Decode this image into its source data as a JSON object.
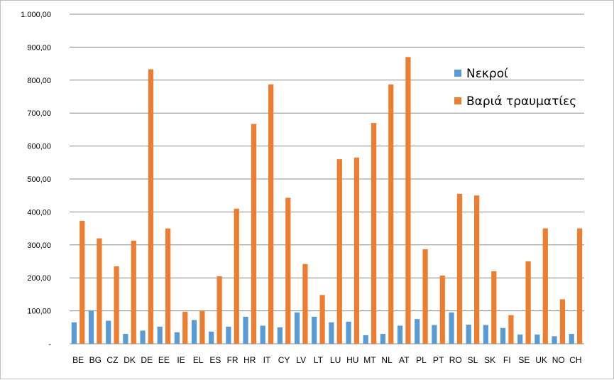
{
  "chart_data": {
    "type": "bar",
    "title": "",
    "xlabel": "",
    "ylabel": "",
    "ylim": [
      0,
      1000
    ],
    "y_ticks": [
      "-",
      "100,00",
      "200,00",
      "300,00",
      "400,00",
      "500,00",
      "600,00",
      "700,00",
      "800,00",
      "900,00",
      "1.000,00"
    ],
    "grid": true,
    "legend_position": "right",
    "categories": [
      "BE",
      "BG",
      "CZ",
      "DK",
      "DE",
      "EE",
      "IE",
      "EL",
      "ES",
      "FR",
      "HR",
      "IT",
      "CY",
      "LV",
      "LT",
      "LU",
      "HU",
      "MT",
      "NL",
      "AT",
      "PL",
      "PT",
      "RO",
      "SL",
      "SK",
      "FI",
      "SE",
      "UK",
      "NO",
      "CH"
    ],
    "series": [
      {
        "name": "Νεκροί",
        "color": "#5b9bd5",
        "values": [
          65,
          100,
          70,
          30,
          40,
          52,
          35,
          72,
          37,
          52,
          82,
          55,
          50,
          95,
          82,
          65,
          67,
          26,
          30,
          55,
          75,
          57,
          95,
          58,
          57,
          48,
          28,
          28,
          23,
          30
        ]
      },
      {
        "name": "Βαριά τραυματίες",
        "color": "#ed7d31",
        "values": [
          373,
          320,
          235,
          313,
          833,
          350,
          97,
          100,
          205,
          410,
          667,
          787,
          443,
          242,
          148,
          560,
          565,
          670,
          787,
          870,
          287,
          207,
          455,
          450,
          220,
          87,
          250,
          350,
          135,
          350
        ]
      }
    ]
  }
}
